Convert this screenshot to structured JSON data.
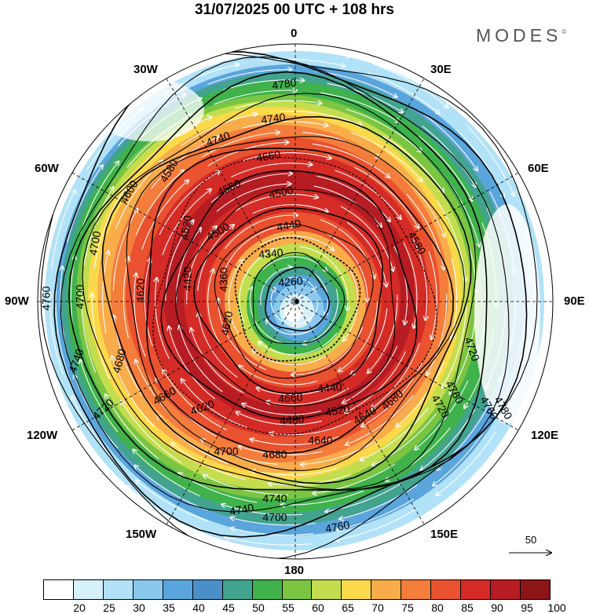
{
  "title": "31/07/2025  00 UTC  + 108 hrs",
  "brand": {
    "text": "MODES",
    "mark": "©"
  },
  "lon_labels": {
    "n0": "0",
    "e30": "30E",
    "e60": "60E",
    "e90": "90E",
    "e120": "120E",
    "e150": "150E",
    "s180": "180",
    "w150": "150W",
    "w120": "120W",
    "w90": "90W",
    "w60": "60W",
    "w30": "30W"
  },
  "reference_vector": {
    "value": "50"
  },
  "colorbar": {
    "labels": [
      "20",
      "25",
      "30",
      "35",
      "40",
      "45",
      "50",
      "55",
      "60",
      "65",
      "70",
      "75",
      "80",
      "85",
      "90",
      "95",
      "100"
    ],
    "colors": [
      "#ffffff",
      "#d7f1fb",
      "#b1e2f7",
      "#8ac8ee",
      "#5ba5dd",
      "#4a8fc8",
      "#42a38e",
      "#3fb24b",
      "#7bc542",
      "#c4dd4f",
      "#fbd94b",
      "#f8ad4a",
      "#f47d3c",
      "#e9512f",
      "#d52b26",
      "#b71c23",
      "#8c1518"
    ]
  },
  "contours": [
    {
      "label": "4780"
    },
    {
      "label": "4740"
    },
    {
      "label": "4740"
    },
    {
      "label": "4660"
    },
    {
      "label": "4560"
    },
    {
      "label": "4500"
    },
    {
      "label": "4500"
    },
    {
      "label": "4440"
    },
    {
      "label": "4340"
    },
    {
      "label": "4260"
    },
    {
      "label": "4580"
    },
    {
      "label": "4520"
    },
    {
      "label": "4700"
    },
    {
      "label": "4620"
    },
    {
      "label": "4420"
    },
    {
      "label": "4360"
    },
    {
      "label": "4620"
    },
    {
      "label": "4760"
    },
    {
      "label": "4700"
    },
    {
      "label": "4740"
    },
    {
      "label": "4680"
    },
    {
      "label": "4600"
    },
    {
      "label": "4660"
    },
    {
      "label": "4620"
    },
    {
      "label": "4720"
    },
    {
      "label": "4700"
    },
    {
      "label": "4680"
    },
    {
      "label": "4640"
    },
    {
      "label": "4740"
    },
    {
      "label": "4760"
    },
    {
      "label": "4740"
    },
    {
      "label": "4700"
    },
    {
      "label": "4720"
    },
    {
      "label": "4760"
    },
    {
      "label": "4780"
    },
    {
      "label": "4680"
    },
    {
      "label": "4760"
    },
    {
      "label": "4720"
    },
    {
      "label": "4520"
    },
    {
      "label": "4440"
    },
    {
      "label": "4480"
    },
    {
      "label": "4660"
    },
    {
      "label": "4580"
    },
    {
      "label": "4640"
    }
  ]
}
